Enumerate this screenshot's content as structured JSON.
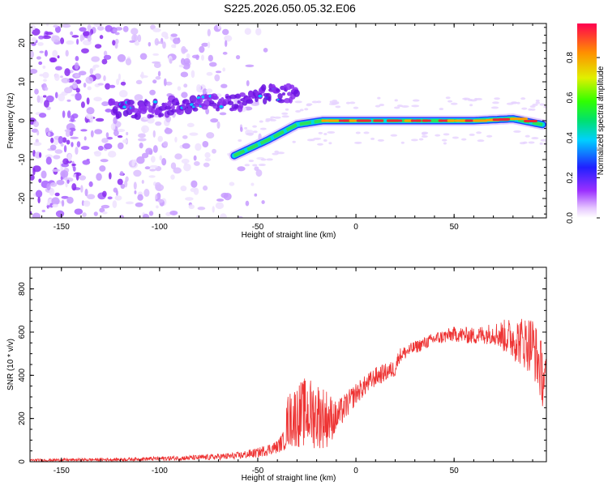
{
  "title": "S225.2026.050.05.32.E06",
  "colors": {
    "snr_line": "#ee3333",
    "track_core": "#e8283a",
    "track_mid": "#2ee05a",
    "track_edge": "#2244ff",
    "scatter": "#9b4dff",
    "scatter_light": "#d9b8ff"
  },
  "chart_data": [
    {
      "type": "heatmap",
      "name": "spectrogram",
      "xlabel": "Height of straight line (km)",
      "ylabel": "Frequency (Hz)",
      "xlim": [
        -166,
        97
      ],
      "ylim": [
        -25,
        25
      ],
      "x_ticks": [
        -150,
        -100,
        -50,
        0,
        50
      ],
      "x_tick_labels": [
        "-150",
        "-100",
        "-50",
        "0",
        "50"
      ],
      "y_ticks": [
        20,
        10,
        0,
        -10,
        -20
      ],
      "y_tick_labels": [
        "20",
        "10",
        "0",
        "-10",
        "-20"
      ],
      "colorbar": {
        "label": "Normalized spectral amplitude",
        "range": [
          0,
          0.97
        ],
        "ticks": [
          0.0,
          0.2,
          0.4,
          0.6,
          0.8
        ],
        "tick_labels": [
          "0.0",
          "0.2",
          "0.4",
          "0.6",
          "0.8"
        ]
      },
      "ridges": [
        {
          "name": "upper-branch",
          "x": [
            -125,
            -100,
            -80,
            -60,
            -45,
            -30
          ],
          "y": [
            3,
            3,
            5,
            4.5,
            7,
            7
          ]
        },
        {
          "name": "main-track",
          "x": [
            -62,
            -45,
            -30,
            -17,
            0,
            30,
            60,
            80,
            95
          ],
          "y": [
            -9,
            -5,
            -1,
            0,
            0,
            0,
            0,
            0.5,
            -1
          ]
        }
      ]
    },
    {
      "type": "line",
      "name": "snr",
      "xlabel": "Height of straight line (km)",
      "ylabel": "SNR (10 * v/v)",
      "xlim": [
        -166,
        97
      ],
      "ylim": [
        0,
        900
      ],
      "x_ticks": [
        -150,
        -100,
        -50,
        0,
        50
      ],
      "x_tick_labels": [
        "-150",
        "-100",
        "-50",
        "0",
        "50"
      ],
      "y_ticks": [
        0,
        200,
        400,
        600,
        800
      ],
      "y_tick_labels": [
        "0",
        "200",
        "400",
        "600",
        "800"
      ],
      "envelope": {
        "x": [
          -166,
          -120,
          -80,
          -60,
          -50,
          -40,
          -36,
          -35,
          -30,
          -25,
          -20,
          -15,
          -10,
          0,
          10,
          20,
          22,
          30,
          40,
          50,
          60,
          70,
          80,
          90,
          97
        ],
        "base": [
          5,
          8,
          15,
          22,
          35,
          60,
          90,
          150,
          170,
          180,
          170,
          160,
          180,
          300,
          380,
          420,
          480,
          520,
          560,
          580,
          570,
          580,
          540,
          500,
          300
        ],
        "amp": [
          12,
          15,
          25,
          35,
          45,
          60,
          100,
          250,
          300,
          330,
          320,
          280,
          150,
          100,
          90,
          80,
          70,
          60,
          60,
          70,
          80,
          100,
          200,
          280,
          300
        ]
      }
    }
  ]
}
